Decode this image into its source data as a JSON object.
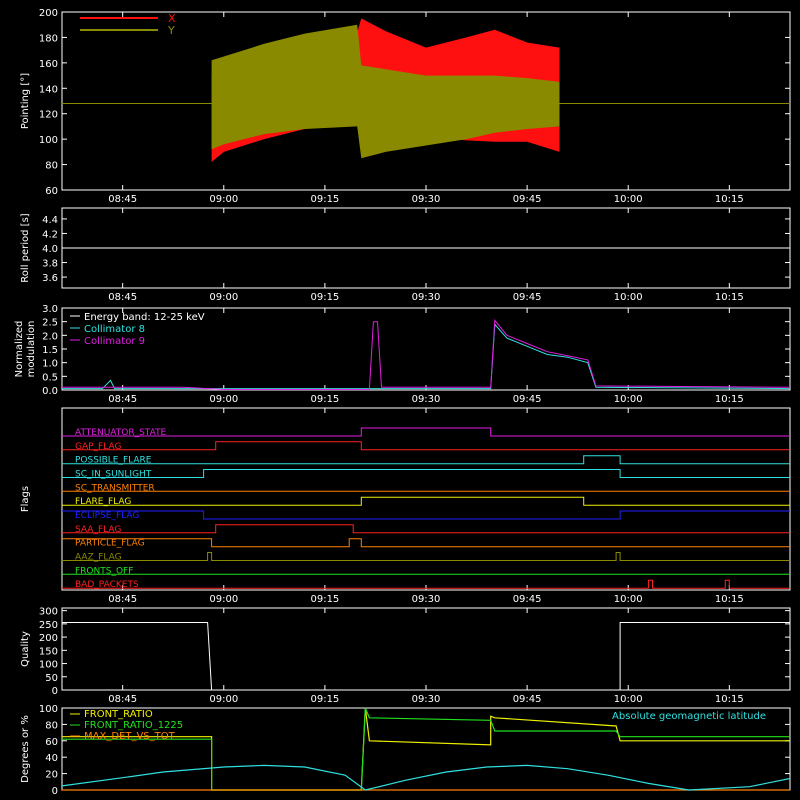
{
  "colors": {
    "bg": "#000000",
    "axis": "#ffffff",
    "x_red": "#ff1010",
    "y_olive": "#8a8a00",
    "cyan": "#30e0e0",
    "magenta": "#e020e0",
    "yellow": "#f0f000",
    "green": "#20e020",
    "orange": "#ff8000",
    "blue": "#2020ff"
  },
  "time_ticks": [
    "08:45",
    "09:00",
    "09:15",
    "09:30",
    "09:45",
    "10:00",
    "10:15"
  ],
  "time_tick_values": [
    8.75,
    9.0,
    9.25,
    9.5,
    9.75,
    10.0,
    10.25
  ],
  "time_range": [
    8.6,
    10.4
  ],
  "chart_data": [
    {
      "type": "area",
      "panel": "pointing",
      "ylabel": "Pointing [°]",
      "ylim": [
        60,
        200
      ],
      "yticks": [
        "60",
        "80",
        "100",
        "120",
        "140",
        "160",
        "180",
        "200"
      ],
      "ytick_values": [
        60,
        80,
        100,
        120,
        140,
        160,
        180,
        200
      ],
      "series": [
        {
          "name": "X",
          "color_key": "x_red",
          "x": [
            8.97,
            9.0,
            9.1,
            9.2,
            9.33,
            9.34,
            9.4,
            9.5,
            9.6,
            9.67,
            9.75,
            9.83
          ],
          "upper": [
            150,
            158,
            168,
            176,
            184,
            195,
            185,
            172,
            180,
            186,
            176,
            172
          ],
          "lower": [
            82,
            90,
            100,
            108,
            112,
            106,
            106,
            102,
            99,
            98,
            98,
            90
          ]
        },
        {
          "name": "Y",
          "color_key": "y_olive",
          "x": [
            8.97,
            9.0,
            9.1,
            9.2,
            9.33,
            9.34,
            9.4,
            9.5,
            9.6,
            9.67,
            9.75,
            9.83
          ],
          "upper": [
            162,
            165,
            175,
            183,
            190,
            158,
            155,
            150,
            150,
            150,
            148,
            145
          ],
          "lower": [
            92,
            96,
            104,
            108,
            110,
            85,
            90,
            95,
            100,
            105,
            108,
            110
          ]
        }
      ],
      "baseline": 128,
      "legend_position": "top-left"
    },
    {
      "type": "line",
      "panel": "roll",
      "ylabel": "Roll period [s]",
      "ylim": [
        3.45,
        4.55
      ],
      "yticks": [
        "3.6",
        "3.8",
        "4.0",
        "4.2",
        "4.4"
      ],
      "ytick_values": [
        3.6,
        3.8,
        4.0,
        4.2,
        4.4
      ],
      "series": [
        {
          "color_key": "axis",
          "x": [
            8.6,
            10.4
          ],
          "y": [
            4.0,
            4.0
          ]
        }
      ]
    },
    {
      "type": "line",
      "panel": "modulation",
      "ylabel": "Normalized modulation",
      "ylabel_lines": [
        "Normalized",
        "modulation"
      ],
      "ylim": [
        0,
        3.0
      ],
      "yticks": [
        "0.0",
        "0.5",
        "1.0",
        "1.5",
        "2.0",
        "2.5",
        "3.0"
      ],
      "ytick_values": [
        0,
        0.5,
        1.0,
        1.5,
        2.0,
        2.5,
        3.0
      ],
      "legend_title": "Energy band: 12-25 keV",
      "legend_position": "top-left",
      "series": [
        {
          "name": "Collimator 8",
          "color_key": "cyan",
          "x": [
            8.6,
            8.7,
            8.72,
            8.73,
            8.8,
            9.0,
            9.35,
            9.66,
            9.67,
            9.7,
            9.75,
            9.8,
            9.85,
            9.9,
            9.92,
            10.4
          ],
          "y": [
            0.05,
            0.05,
            0.35,
            0.05,
            0.05,
            0.05,
            0.05,
            0.05,
            2.4,
            1.9,
            1.6,
            1.3,
            1.2,
            1.0,
            0.1,
            0.05
          ]
        },
        {
          "name": "Collimator 9",
          "color_key": "magenta",
          "x": [
            8.6,
            8.9,
            9.0,
            9.36,
            9.37,
            9.38,
            9.39,
            9.66,
            9.67,
            9.7,
            9.75,
            9.8,
            9.85,
            9.9,
            9.92,
            10.4
          ],
          "y": [
            0.1,
            0.1,
            0.02,
            0.02,
            2.5,
            2.5,
            0.1,
            0.1,
            2.55,
            2.0,
            1.7,
            1.4,
            1.25,
            1.1,
            0.15,
            0.1
          ]
        }
      ]
    },
    {
      "type": "line",
      "panel": "flags",
      "ylabel": "Flags",
      "series": [
        {
          "name": "ATTENUATOR_STATE",
          "color_key": "magenta",
          "steps": [
            [
              8.6,
              0
            ],
            [
              9.34,
              1
            ],
            [
              9.66,
              0
            ]
          ]
        },
        {
          "name": "GAP_FLAG",
          "color_key": "red_flag",
          "steps": [
            [
              8.6,
              0
            ],
            [
              8.98,
              1
            ],
            [
              9.34,
              0
            ]
          ]
        },
        {
          "name": "POSSIBLE_FLARE",
          "color_key": "cyan",
          "steps": [
            [
              8.6,
              0
            ],
            [
              9.89,
              1
            ],
            [
              9.98,
              0
            ]
          ]
        },
        {
          "name": "SC_IN_SUNLIGHT",
          "color_key": "cyan",
          "steps": [
            [
              8.6,
              0
            ],
            [
              8.95,
              1
            ],
            [
              9.98,
              0
            ]
          ]
        },
        {
          "name": "SC_TRANSMITTER",
          "color_key": "orange",
          "steps": [
            [
              8.6,
              0
            ]
          ]
        },
        {
          "name": "FLARE_FLAG",
          "color_key": "yellow",
          "steps": [
            [
              8.6,
              0
            ],
            [
              9.34,
              1
            ],
            [
              9.89,
              0
            ]
          ]
        },
        {
          "name": "ECLIPSE_FLAG",
          "color_key": "blue",
          "steps": [
            [
              8.6,
              1
            ],
            [
              8.95,
              0
            ],
            [
              9.98,
              1
            ]
          ]
        },
        {
          "name": "SAA_FLAG",
          "color_key": "red_flag",
          "steps": [
            [
              8.6,
              0
            ],
            [
              8.98,
              1
            ],
            [
              9.32,
              0
            ]
          ]
        },
        {
          "name": "PARTICLE_FLAG",
          "color_key": "orange",
          "steps": [
            [
              8.6,
              1
            ],
            [
              8.97,
              0
            ],
            [
              9.31,
              1
            ],
            [
              9.34,
              0
            ]
          ]
        },
        {
          "name": "AAZ_FLAG",
          "color_key": "y_olive",
          "steps": [
            [
              8.6,
              0
            ],
            [
              8.96,
              1
            ],
            [
              8.97,
              0
            ],
            [
              9.97,
              1
            ],
            [
              9.98,
              0
            ]
          ]
        },
        {
          "name": "FRONTS_OFF",
          "color_key": "green",
          "steps": [
            [
              8.6,
              0
            ]
          ]
        },
        {
          "name": "BAD_PACKETS",
          "color_key": "red_flag",
          "steps": [
            [
              8.6,
              0
            ],
            [
              10.05,
              1
            ],
            [
              10.06,
              0
            ],
            [
              10.24,
              1
            ],
            [
              10.25,
              0
            ]
          ]
        }
      ]
    },
    {
      "type": "line",
      "panel": "quality",
      "ylabel": "Quality",
      "ylim": [
        0,
        310
      ],
      "yticks": [
        "0",
        "50",
        "100",
        "150",
        "200",
        "250",
        "300"
      ],
      "ytick_values": [
        0,
        50,
        100,
        150,
        200,
        250,
        300
      ],
      "series": [
        {
          "color_key": "axis",
          "x": [
            8.6,
            8.96,
            8.97,
            9.98,
            9.98,
            10.4
          ],
          "y": [
            255,
            255,
            0,
            0,
            255,
            255
          ]
        }
      ]
    },
    {
      "type": "line",
      "panel": "ratios",
      "ylabel": "Degrees or %",
      "ylim": [
        0,
        100
      ],
      "yticks": [
        "0",
        "20",
        "40",
        "60",
        "80",
        "100"
      ],
      "ytick_values": [
        0,
        20,
        40,
        60,
        80,
        100
      ],
      "annotation": "Absolute geomagnetic latitude",
      "legend_position": "top-left",
      "series": [
        {
          "name": "FRONT_RATIO",
          "color_key": "yellow",
          "x": [
            8.6,
            8.97,
            8.97,
            9.34,
            9.35,
            9.36,
            9.66,
            9.66,
            9.67,
            9.97,
            9.98,
            10.4
          ],
          "y": [
            65,
            65,
            0,
            0,
            100,
            60,
            55,
            90,
            88,
            78,
            60,
            60
          ]
        },
        {
          "name": "FRONT_RATIO_1225",
          "color_key": "green",
          "x": [
            8.6,
            8.97,
            8.97,
            9.34,
            9.35,
            9.36,
            9.66,
            9.67,
            9.97,
            9.98,
            10.4
          ],
          "y": [
            62,
            62,
            0,
            0,
            100,
            88,
            85,
            72,
            72,
            65,
            65
          ]
        },
        {
          "name": "MAX_DET_VS_TOT",
          "color_key": "orange",
          "x": [
            8.6,
            10.4
          ],
          "y": [
            0,
            0
          ]
        },
        {
          "name": "Absolute geomagnetic latitude",
          "color_key": "cyan",
          "x": [
            8.6,
            8.75,
            8.85,
            9.0,
            9.1,
            9.2,
            9.3,
            9.35,
            9.45,
            9.55,
            9.65,
            9.75,
            9.85,
            9.95,
            10.05,
            10.15,
            10.3,
            10.4
          ],
          "y": [
            5,
            15,
            22,
            28,
            30,
            28,
            18,
            0,
            12,
            22,
            28,
            30,
            26,
            18,
            8,
            0,
            4,
            14
          ]
        }
      ]
    }
  ],
  "legend": {
    "pointing": [
      {
        "label": "X",
        "color_key": "x_red"
      },
      {
        "label": "Y",
        "color_key": "y_olive"
      }
    ],
    "modulation": [
      "Energy band: 12-25 keV",
      "Collimator 8",
      "Collimator 9"
    ],
    "ratios": [
      "FRONT_RATIO",
      "FRONT_RATIO_1225",
      "MAX_DET_VS_TOT"
    ]
  }
}
